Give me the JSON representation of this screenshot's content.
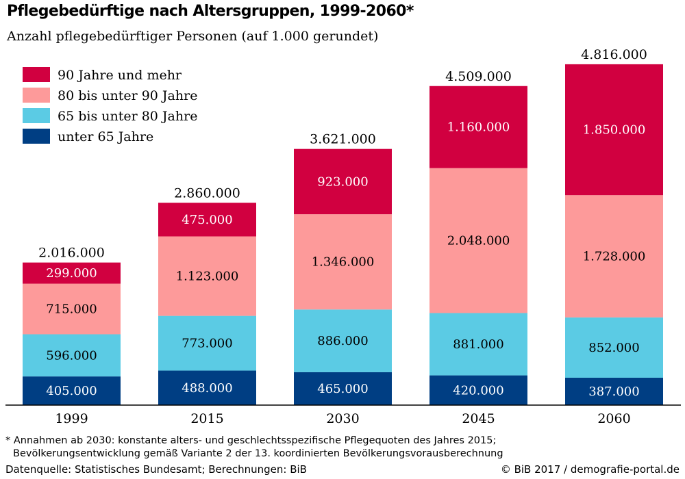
{
  "title": "Pflegebedürftige nach Altersgruppen, 1999-2060*",
  "subtitle": "Anzahl pflegebedürftiger Personen (auf 1.000 gerundet)",
  "chart_data": {
    "type": "bar",
    "stacked": true,
    "categories": [
      "1999",
      "2015",
      "2030",
      "2045",
      "2060"
    ],
    "series": [
      {
        "name": "unter 65 Jahre",
        "color": "#003e83",
        "text_color": "#ffffff",
        "values": [
          405000,
          488000,
          465000,
          420000,
          387000
        ],
        "labels": [
          "405.000",
          "488.000",
          "465.000",
          "420.000",
          "387.000"
        ]
      },
      {
        "name": "65 bis unter 80 Jahre",
        "color": "#5bcbe4",
        "text_color": "#000000",
        "values": [
          596000,
          773000,
          886000,
          881000,
          852000
        ],
        "labels": [
          "596.000",
          "773.000",
          "886.000",
          "881.000",
          "852.000"
        ]
      },
      {
        "name": "80 bis unter 90 Jahre",
        "color": "#fd9a9a",
        "text_color": "#000000",
        "values": [
          715000,
          1123000,
          1346000,
          2048000,
          1728000
        ],
        "labels": [
          "715.000",
          "1.123.000",
          "1.346.000",
          "2.048.000",
          "1.728.000"
        ]
      },
      {
        "name": "90 Jahre und mehr",
        "color": "#d10040",
        "text_color": "#ffffff",
        "values": [
          299000,
          475000,
          923000,
          1160000,
          1850000
        ],
        "labels": [
          "299.000",
          "475.000",
          "923.000",
          "1.160.000",
          "1.850.000"
        ]
      }
    ],
    "totals": [
      2016000,
      2860000,
      3621000,
      4509000,
      4816000
    ],
    "total_labels": [
      "2.016.000",
      "2.860.000",
      "3.621.000",
      "4.509.000",
      "4.816.000"
    ],
    "legend_order": [
      "90 Jahre und mehr",
      "80 bis unter 90 Jahre",
      "65 bis unter 80 Jahre",
      "unter 65 Jahre"
    ],
    "legend_position": "top-left",
    "ylim": [
      0,
      5000000
    ],
    "grid": false
  },
  "footnote_line1": "* Annahmen ab 2030: konstante alters- und geschlechtsspezifische Pflegequoten des Jahres 2015;",
  "footnote_line2": "Bevölkerungsentwicklung gemäß Variante 2 der 13. koordinierten Bevölkerungsvorausberechnung",
  "source": "Datenquelle: Statistisches Bundesamt; Berechnungen: BiB",
  "credit": "© BiB 2017 / demografie-portal.de"
}
